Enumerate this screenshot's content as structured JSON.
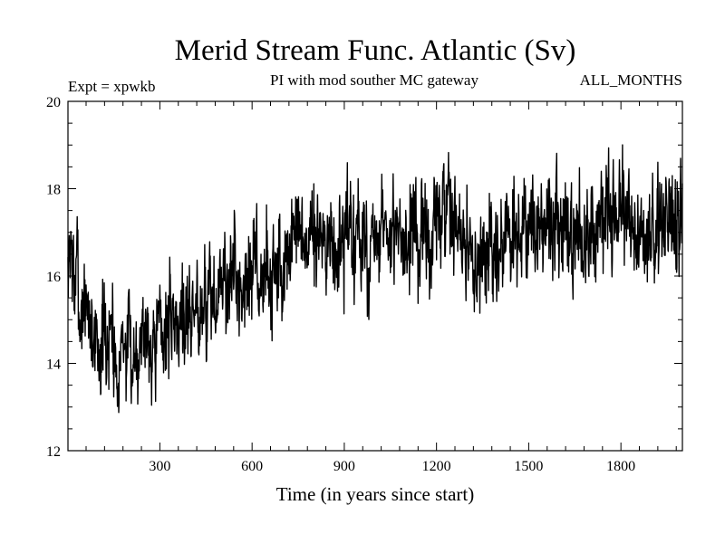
{
  "chart_data": {
    "type": "line",
    "title": "Merid Stream Func. Atlantic (Sv)",
    "subtitle": "PI with mod souther MC gateway",
    "left_note": "Expt = xpwkb",
    "right_note": "ALL_MONTHS",
    "xlabel": "Time (in years since start)",
    "ylabel": "",
    "xlim": [
      1,
      2000
    ],
    "ylim": [
      12,
      20
    ],
    "x_ticks": [
      300,
      600,
      900,
      1200,
      1500,
      1800
    ],
    "y_ticks": [
      12,
      14,
      16,
      18,
      20
    ],
    "line_color": "#000000",
    "series": [
      {
        "name": "Merid Stream Func. Atlantic",
        "x_start": 1,
        "x_step": 10,
        "values": [
          15.8,
          17.0,
          15.6,
          16.3,
          14.8,
          15.6,
          15.0,
          15.2,
          14.4,
          15.0,
          14.2,
          14.6,
          14.5,
          14.2,
          15.1,
          14.3,
          14.0,
          14.1,
          14.9,
          14.0,
          14.6,
          13.9,
          14.4,
          14.5,
          14.7,
          14.6,
          14.9,
          14.4,
          14.7,
          14.8,
          14.9,
          14.6,
          15.0,
          14.7,
          15.2,
          15.0,
          14.8,
          15.4,
          14.9,
          15.3,
          15.2,
          15.1,
          15.4,
          15.1,
          15.7,
          15.2,
          15.5,
          15.6,
          15.1,
          15.8,
          15.7,
          16.1,
          15.7,
          15.8,
          16.4,
          15.9,
          15.6,
          16.0,
          16.3,
          15.8,
          16.0,
          16.5,
          15.9,
          15.7,
          16.3,
          16.1,
          15.9,
          16.2,
          16.6,
          16.0,
          15.8,
          16.4,
          16.7,
          16.6,
          16.8,
          17.1,
          16.6,
          16.9,
          16.5,
          17.0,
          16.7,
          16.6,
          17.3,
          16.8,
          16.4,
          17.0,
          16.9,
          16.2,
          16.5,
          16.8,
          16.6,
          17.1,
          16.9,
          16.5,
          17.2,
          16.8,
          16.5,
          16.9,
          16.3,
          16.7,
          16.8,
          16.4,
          16.9,
          17.1,
          16.6,
          16.8,
          17.0,
          16.5,
          17.3,
          17.0,
          16.8,
          16.6,
          17.1,
          16.9,
          16.4,
          16.7,
          17.0,
          16.8,
          16.6,
          17.2,
          17.4,
          16.9,
          17.5,
          17.1,
          17.6,
          17.0,
          17.4,
          16.9,
          17.2,
          16.6,
          16.3,
          16.8,
          16.5,
          16.2,
          16.7,
          16.4,
          16.1,
          16.6,
          16.3,
          16.8,
          16.5,
          16.9,
          16.4,
          17.0,
          16.6,
          17.1,
          16.8,
          16.5,
          17.2,
          16.9,
          17.0,
          17.3,
          16.9,
          17.4,
          17.1,
          16.8,
          17.5,
          17.2,
          16.9,
          17.1,
          16.4,
          16.9,
          17.3,
          16.7,
          17.2,
          16.8,
          17.4,
          16.6,
          17.1,
          16.9,
          17.3,
          16.7,
          17.0,
          17.6,
          17.2,
          17.5,
          17.9,
          17.3,
          17.8,
          17.4,
          17.7,
          17.1,
          17.5,
          16.8,
          17.2,
          16.6,
          17.0,
          16.7,
          17.3,
          16.9,
          17.4,
          16.8,
          17.2,
          17.6,
          17.0,
          17.5,
          17.1,
          17.3,
          16.9,
          17.5
        ],
        "noise_sd": 0.75,
        "noise_seed": 7
      }
    ]
  }
}
